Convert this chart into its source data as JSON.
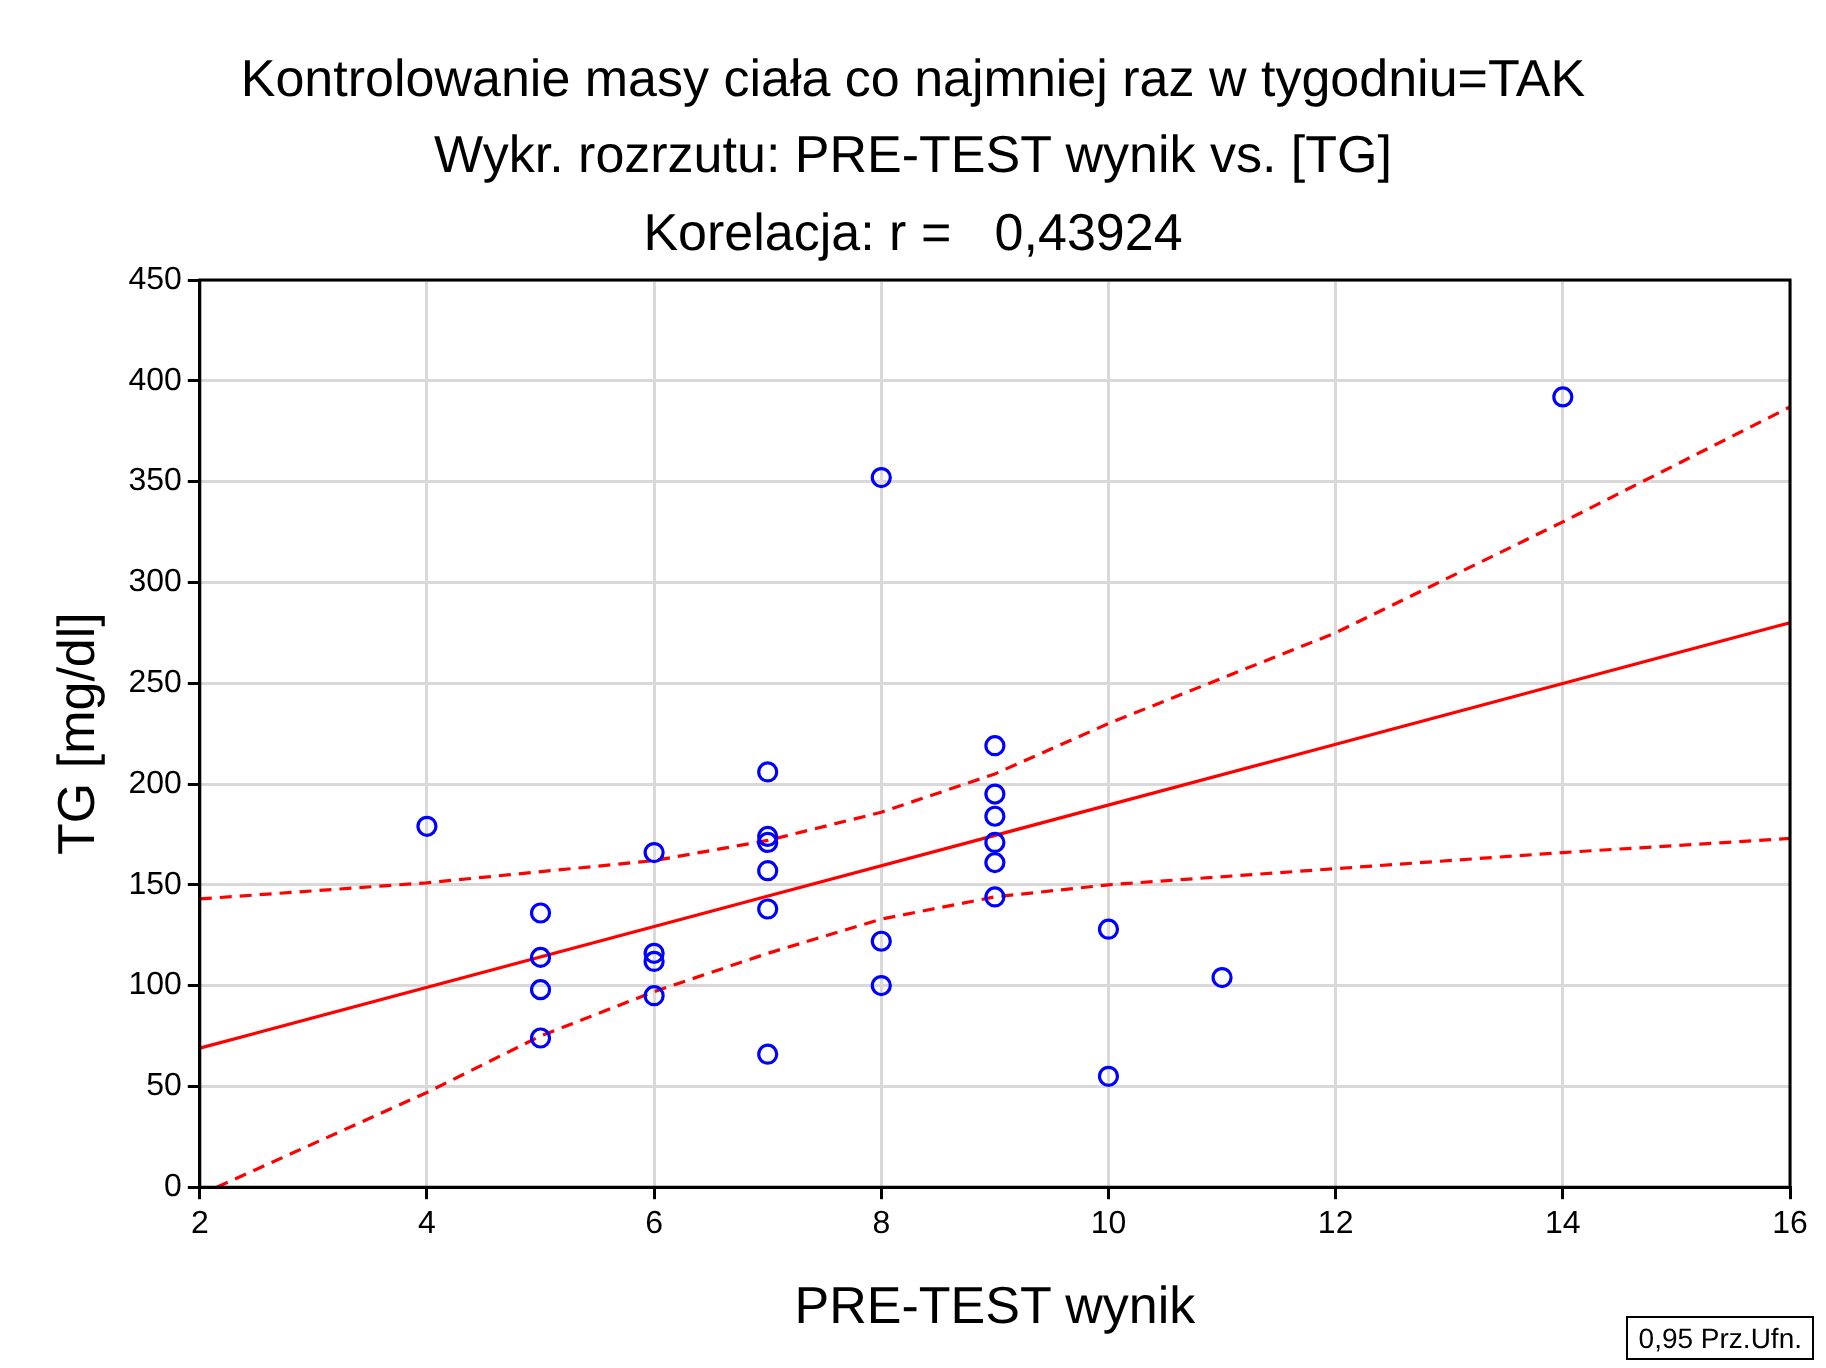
{
  "chart_data": {
    "type": "scatter",
    "title": "Kontrolowanie masy ciała co najmniej raz w tygodniu=TAK",
    "subtitle": "Wykr. rozrzutu: PRE-TEST wynik vs. [TG]",
    "xlabel": "PRE-TEST wynik",
    "ylabel": "TG [mg/dl]",
    "annotations": [
      "Korelacja: r =   0,43924",
      "0,95 Prz.Ufn."
    ],
    "xlim": [
      2,
      16
    ],
    "xticks": [
      2,
      4,
      6,
      8,
      10,
      12,
      14,
      16
    ],
    "ylim": [
      0,
      450
    ],
    "yticks": [
      0,
      50,
      100,
      150,
      200,
      250,
      300,
      350,
      400,
      450
    ],
    "grid": true,
    "legend": false,
    "series": [
      {
        "marker": "circle",
        "color": "#0000ff",
        "x": [
          4,
          5,
          5,
          5,
          5,
          6,
          6,
          6,
          6,
          7,
          7,
          7,
          7,
          7,
          7,
          8,
          8,
          8,
          9,
          9,
          9,
          9,
          9,
          9,
          10,
          10,
          11,
          14
        ],
        "values": [
          179,
          136,
          114,
          98,
          74,
          166,
          116,
          112,
          95,
          206,
          174,
          171,
          157,
          138,
          66,
          352,
          122,
          100,
          219,
          195,
          184,
          171,
          161,
          144,
          128,
          55,
          104,
          392
        ]
      },
      {
        "type": "line",
        "marker": "none",
        "color": "#ff0000",
        "line_style": "solid",
        "x": [
          2,
          16
        ],
        "values": [
          69,
          280
        ]
      },
      {
        "type": "line",
        "marker": "none",
        "color": "#ff0000",
        "line_style": "dashed",
        "x": [
          2,
          4,
          6,
          7,
          8,
          9,
          10,
          12,
          14,
          16
        ],
        "values": [
          143,
          151,
          162,
          172,
          186,
          205,
          230,
          275,
          330,
          387
        ]
      },
      {
        "type": "line",
        "marker": "none",
        "color": "#ff0000",
        "line_style": "dashed",
        "x": [
          2.15,
          4,
          5,
          6,
          7,
          8,
          9,
          10,
          12,
          14,
          16
        ],
        "values": [
          0,
          47,
          75,
          97,
          116,
          133,
          144,
          150,
          158,
          166,
          173
        ]
      }
    ]
  }
}
